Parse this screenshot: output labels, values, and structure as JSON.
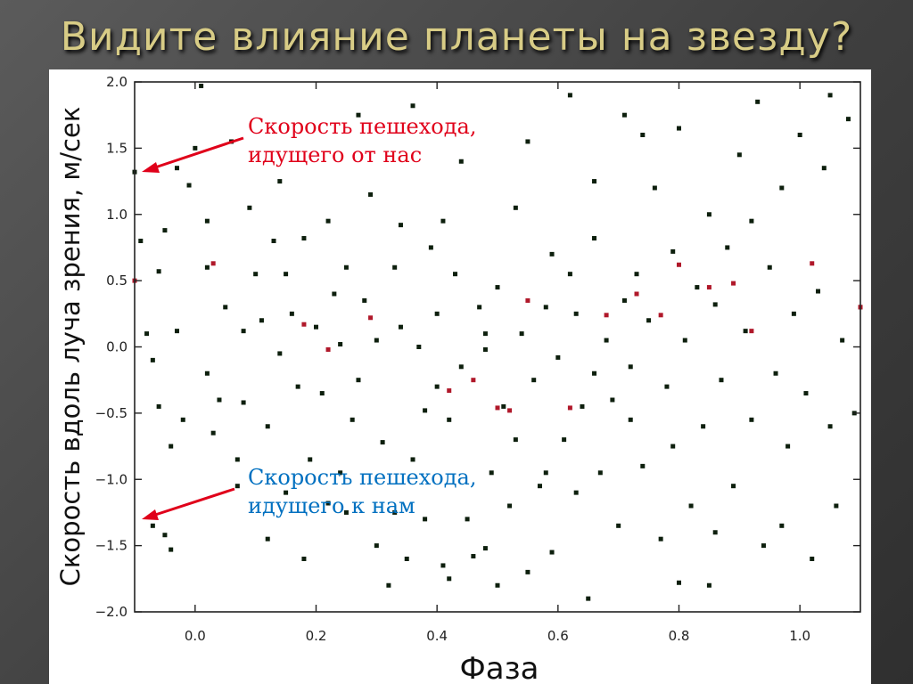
{
  "slide": {
    "title": "Видите влияние планеты на звезду?"
  },
  "annotations": {
    "away": {
      "line1": "Скорость пешехода,",
      "line2": "идущего от нас",
      "color": "#e0001a"
    },
    "toward": {
      "line1": "Скорость пешехода,",
      "line2": "идущего к нам",
      "color": "#0070c0"
    },
    "arrow_color": "#e0001a"
  },
  "chart_data": {
    "type": "scatter",
    "xlabel": "Фаза",
    "ylabel": "Скорость вдоль луча зрения, м/сек",
    "xlim": [
      -0.1,
      1.1
    ],
    "ylim": [
      -2.0,
      2.0
    ],
    "xticks": [
      "0.0",
      "0.2",
      "0.4",
      "0.6",
      "0.8",
      "1.0"
    ],
    "yticks": [
      "2.0",
      "1.5",
      "1.0",
      "0.5",
      "0.0",
      "−0.5",
      "−1.0",
      "−1.5",
      "−2.0"
    ],
    "grid": false,
    "point_color": "#0d1f0d",
    "highlight_color": "#b0182a",
    "series": [
      {
        "values": [
          [
            -0.1,
            1.32
          ],
          [
            -0.09,
            0.8
          ],
          [
            -0.08,
            0.1
          ],
          [
            -0.07,
            -0.1
          ],
          [
            -0.06,
            -0.45
          ],
          [
            -0.05,
            -1.42
          ],
          [
            -0.07,
            -1.35
          ],
          [
            -0.04,
            -1.53
          ],
          [
            -0.06,
            0.57
          ],
          [
            -0.05,
            0.88
          ],
          [
            -0.03,
            0.12
          ],
          [
            -0.02,
            -0.55
          ],
          [
            -0.04,
            -0.75
          ],
          [
            -0.03,
            1.35
          ],
          [
            -0.01,
            1.22
          ],
          [
            0.0,
            1.5
          ],
          [
            0.01,
            1.97
          ],
          [
            0.02,
            0.6
          ],
          [
            0.02,
            -0.2
          ],
          [
            0.03,
            -0.65
          ],
          [
            0.04,
            -0.4
          ],
          [
            0.05,
            0.3
          ],
          [
            0.06,
            1.55
          ],
          [
            0.07,
            -0.85
          ],
          [
            0.08,
            0.12
          ],
          [
            0.08,
            -0.42
          ],
          [
            0.09,
            1.05
          ],
          [
            0.1,
            0.55
          ],
          [
            0.11,
            0.2
          ],
          [
            0.12,
            -0.6
          ],
          [
            0.13,
            0.8
          ],
          [
            0.14,
            -0.05
          ],
          [
            0.15,
            -1.1
          ],
          [
            0.15,
            0.55
          ],
          [
            0.16,
            0.25
          ],
          [
            0.17,
            -0.3
          ],
          [
            0.18,
            0.82
          ],
          [
            0.19,
            -0.85
          ],
          [
            0.2,
            0.15
          ],
          [
            0.21,
            -0.35
          ],
          [
            0.22,
            0.95
          ],
          [
            0.22,
            -1.18
          ],
          [
            0.23,
            0.4
          ],
          [
            0.24,
            0.02
          ],
          [
            0.25,
            -1.25
          ],
          [
            0.25,
            0.6
          ],
          [
            0.26,
            -0.55
          ],
          [
            0.27,
            -0.25
          ],
          [
            0.28,
            0.35
          ],
          [
            0.29,
            1.15
          ],
          [
            0.3,
            -1.5
          ],
          [
            0.3,
            0.05
          ],
          [
            0.31,
            -0.72
          ],
          [
            0.32,
            -1.8
          ],
          [
            0.33,
            0.6
          ],
          [
            0.33,
            -1.25
          ],
          [
            0.34,
            0.15
          ],
          [
            0.35,
            -1.6
          ],
          [
            0.36,
            -0.85
          ],
          [
            0.37,
            0.0
          ],
          [
            0.38,
            -0.48
          ],
          [
            0.38,
            -1.3
          ],
          [
            0.39,
            0.75
          ],
          [
            0.4,
            -0.3
          ],
          [
            0.4,
            0.25
          ],
          [
            0.41,
            -1.65
          ],
          [
            0.42,
            -1.75
          ],
          [
            0.42,
            -0.55
          ],
          [
            0.43,
            0.55
          ],
          [
            0.44,
            -0.15
          ],
          [
            0.45,
            -1.3
          ],
          [
            0.46,
            -1.58
          ],
          [
            0.47,
            0.3
          ],
          [
            0.48,
            0.1
          ],
          [
            0.48,
            -1.52
          ],
          [
            0.49,
            -0.95
          ],
          [
            0.5,
            -1.8
          ],
          [
            0.5,
            0.45
          ],
          [
            0.51,
            -0.45
          ],
          [
            0.52,
            -1.2
          ],
          [
            0.53,
            -0.7
          ],
          [
            0.54,
            0.1
          ],
          [
            0.55,
            -1.7
          ],
          [
            0.56,
            -0.25
          ],
          [
            0.57,
            -1.05
          ],
          [
            0.58,
            0.3
          ],
          [
            0.59,
            0.7
          ],
          [
            0.59,
            -1.55
          ],
          [
            0.6,
            -0.08
          ],
          [
            0.61,
            -0.7
          ],
          [
            0.62,
            0.55
          ],
          [
            0.63,
            -1.1
          ],
          [
            0.63,
            0.25
          ],
          [
            0.64,
            -0.45
          ],
          [
            0.65,
            -1.9
          ],
          [
            0.66,
            -0.2
          ],
          [
            0.66,
            0.82
          ],
          [
            0.67,
            -0.95
          ],
          [
            0.68,
            0.05
          ],
          [
            0.69,
            -0.4
          ],
          [
            0.7,
            -1.35
          ],
          [
            0.71,
            1.75
          ],
          [
            0.71,
            0.35
          ],
          [
            0.72,
            -0.15
          ],
          [
            0.73,
            0.55
          ],
          [
            0.74,
            1.6
          ],
          [
            0.74,
            -0.9
          ],
          [
            0.75,
            0.2
          ],
          [
            0.76,
            1.2
          ],
          [
            0.77,
            -1.45
          ],
          [
            0.78,
            -0.3
          ],
          [
            0.79,
            0.72
          ],
          [
            0.8,
            -1.78
          ],
          [
            0.8,
            1.65
          ],
          [
            0.81,
            0.05
          ],
          [
            0.82,
            -1.2
          ],
          [
            0.83,
            0.45
          ],
          [
            0.84,
            -0.6
          ],
          [
            0.85,
            1.0
          ],
          [
            0.86,
            0.32
          ],
          [
            0.86,
            -1.4
          ],
          [
            0.87,
            -0.25
          ],
          [
            0.88,
            0.75
          ],
          [
            0.89,
            -1.05
          ],
          [
            0.9,
            1.45
          ],
          [
            0.91,
            0.12
          ],
          [
            0.92,
            -0.55
          ],
          [
            0.93,
            1.85
          ],
          [
            0.94,
            -1.5
          ],
          [
            0.95,
            0.6
          ],
          [
            0.96,
            -0.2
          ],
          [
            0.97,
            1.2
          ],
          [
            0.98,
            -0.75
          ],
          [
            0.99,
            0.25
          ],
          [
            1.0,
            1.6
          ],
          [
            1.01,
            -0.35
          ],
          [
            1.02,
            -1.6
          ],
          [
            1.03,
            0.42
          ],
          [
            1.04,
            1.35
          ],
          [
            1.05,
            -0.6
          ],
          [
            1.06,
            -1.2
          ],
          [
            1.07,
            0.05
          ],
          [
            1.08,
            1.72
          ],
          [
            1.09,
            -0.5
          ],
          [
            1.1,
            0.3
          ],
          [
            0.12,
            -1.45
          ],
          [
            0.36,
            1.82
          ],
          [
            0.55,
            1.55
          ],
          [
            0.02,
            0.95
          ],
          [
            0.27,
            1.75
          ],
          [
            0.44,
            1.4
          ],
          [
            0.62,
            1.9
          ],
          [
            0.85,
            -1.8
          ],
          [
            1.05,
            1.9
          ],
          [
            0.18,
            -1.6
          ],
          [
            0.48,
            -0.02
          ],
          [
            0.72,
            -0.55
          ],
          [
            0.92,
            0.95
          ],
          [
            0.34,
            0.92
          ],
          [
            0.58,
            -0.95
          ],
          [
            0.07,
            -1.05
          ],
          [
            0.97,
            -1.35
          ],
          [
            0.24,
            -0.95
          ],
          [
            0.66,
            1.25
          ],
          [
            0.41,
            0.95
          ],
          [
            0.79,
            -0.75
          ],
          [
            0.14,
            1.25
          ],
          [
            0.53,
            1.05
          ]
        ]
      },
      {
        "name": "highlighted",
        "values": [
          [
            0.03,
            0.63
          ],
          [
            0.18,
            0.17
          ],
          [
            0.22,
            -0.02
          ],
          [
            0.29,
            0.22
          ],
          [
            0.42,
            -0.33
          ],
          [
            0.46,
            -0.25
          ],
          [
            0.5,
            -0.46
          ],
          [
            0.52,
            -0.48
          ],
          [
            0.62,
            -0.46
          ],
          [
            0.68,
            0.24
          ],
          [
            0.73,
            0.4
          ],
          [
            0.77,
            0.24
          ],
          [
            0.8,
            0.62
          ],
          [
            0.85,
            0.45
          ],
          [
            0.89,
            0.48
          ],
          [
            0.92,
            0.12
          ],
          [
            1.02,
            0.63
          ],
          [
            1.1,
            0.3
          ],
          [
            -0.1,
            0.5
          ],
          [
            0.55,
            0.35
          ]
        ]
      }
    ]
  }
}
